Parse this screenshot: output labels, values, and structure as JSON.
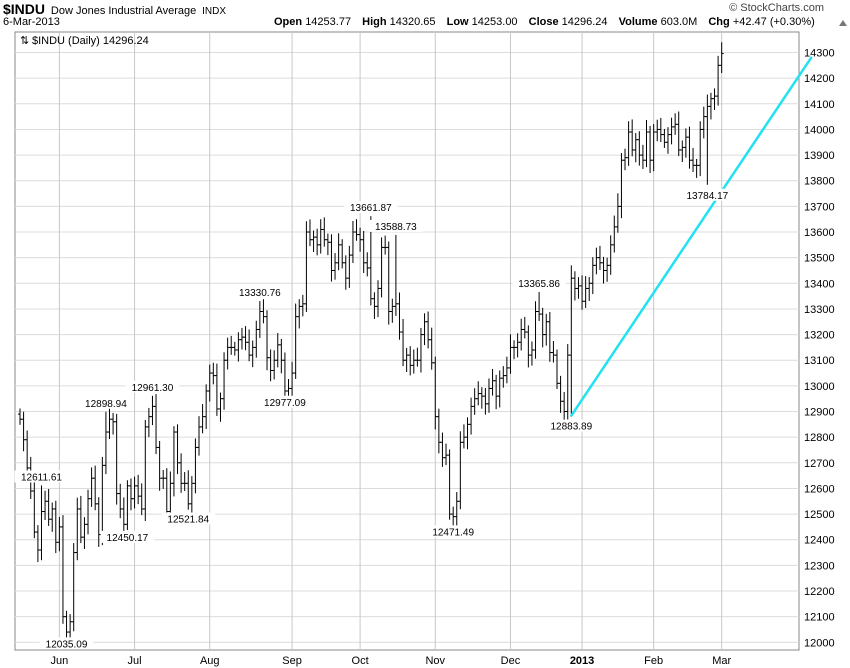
{
  "header": {
    "symbol": "$INDU",
    "name": "Dow Jones Industrial Average",
    "exchange": "INDX",
    "date": "6-Mar-2013",
    "credit": "© StockCharts.com",
    "open_label": "Open",
    "open": "14253.77",
    "high_label": "High",
    "high": "14320.65",
    "low_label": "Low",
    "low": "14253.00",
    "close_label": "Close",
    "close": "14296.24",
    "volume_label": "Volume",
    "volume": "603.0M",
    "chg_label": "Chg",
    "chg": "+42.47 (+0.30%)"
  },
  "colors": {
    "bar": "#000000",
    "trend": "#22e1f0",
    "grid": "#dcdcdc",
    "month_grid": "#c8c8c8"
  },
  "chart_data": {
    "type": "ohlc",
    "legend": "$INDU (Daily) 14296.24",
    "ylim": [
      11970,
      14380
    ],
    "y_ticks": [
      12000,
      12100,
      12200,
      12300,
      12400,
      12500,
      12600,
      12700,
      12800,
      12900,
      13000,
      13100,
      13200,
      13300,
      13400,
      13500,
      13600,
      13700,
      13800,
      13900,
      14000,
      14100,
      14200,
      14300
    ],
    "x_labels": [
      {
        "label": "Jun",
        "index": 11,
        "bold": false
      },
      {
        "label": "Jul",
        "index": 32,
        "bold": false
      },
      {
        "label": "Aug",
        "index": 53,
        "bold": false
      },
      {
        "label": "Sep",
        "index": 76,
        "bold": false
      },
      {
        "label": "Oct",
        "index": 95,
        "bold": false
      },
      {
        "label": "Nov",
        "index": 116,
        "bold": false
      },
      {
        "label": "Dec",
        "index": 137,
        "bold": false
      },
      {
        "label": "2013",
        "index": 157,
        "bold": true
      },
      {
        "label": "Feb",
        "index": 177,
        "bold": false
      },
      {
        "label": "Mar",
        "index": 196,
        "bold": false
      }
    ],
    "closes": [
      12870,
      12790,
      12680,
      12590,
      12430,
      12360,
      12510,
      12550,
      12480,
      12520,
      12390,
      12450,
      12100,
      12040,
      12080,
      12350,
      12520,
      12410,
      12460,
      12560,
      12640,
      12540,
      12420,
      12690,
      12820,
      12870,
      12860,
      12580,
      12520,
      12460,
      12610,
      12560,
      12610,
      12570,
      12520,
      12840,
      12880,
      12920,
      12760,
      12640,
      12640,
      12510,
      12620,
      12820,
      12700,
      12620,
      12620,
      12540,
      12620,
      12760,
      12840,
      12880,
      12980,
      13050,
      13040,
      12910,
      12950,
      13100,
      13150,
      13150,
      13140,
      13180,
      13190,
      13170,
      13120,
      13150,
      13220,
      13290,
      13270,
      13110,
      13060,
      13100,
      13160,
      13100,
      12980,
      12990,
      13050,
      13270,
      13310,
      13320,
      13600,
      13570,
      13580,
      13550,
      13610,
      13570,
      13560,
      13450,
      13480,
      13550,
      13480,
      13420,
      13510,
      13600,
      13590,
      13570,
      13480,
      13460,
      13340,
      13310,
      13380,
      13540,
      13540,
      13290,
      13310,
      13320,
      13210,
      13100,
      13120,
      13080,
      13100,
      13100,
      13200,
      13250,
      13180,
      13090,
      12880,
      12780,
      12720,
      12730,
      12500,
      12490,
      12550,
      12780,
      12800,
      12850,
      12920,
      12950,
      12970,
      12960,
      12930,
      12990,
      13020,
      12960,
      13030,
      13040,
      13070,
      13150,
      13150,
      13170,
      13220,
      13210,
      13120,
      13140,
      13290,
      13280,
      13200,
      13250,
      13130,
      13120,
      13010,
      12940,
      12900,
      13120,
      13420,
      13380,
      13390,
      13330,
      13380,
      13400,
      13470,
      13500,
      13480,
      13450,
      13470,
      13550,
      13620,
      13700,
      13880,
      13890,
      13990,
      13920,
      13960,
      13900,
      13880,
      13990,
      13880,
      13990,
      14000,
      13980,
      13950,
      13980,
      14010,
      14020,
      13920,
      13930,
      13970,
      13880,
      13860,
      13860,
      14000,
      14050,
      14090,
      14120,
      14130,
      14250,
      14296
    ],
    "annotations": [
      {
        "label": "12611.61",
        "index": 6,
        "value": 12611.61,
        "pos": "above"
      },
      {
        "label": "12035.09",
        "index": 13,
        "value": 12035.09,
        "pos": "below"
      },
      {
        "label": "12898.94",
        "index": 24,
        "value": 12898.94,
        "pos": "above"
      },
      {
        "label": "12450.17",
        "index": 30,
        "value": 12450.17,
        "pos": "below"
      },
      {
        "label": "12961.30",
        "index": 37,
        "value": 12961.3,
        "pos": "above"
      },
      {
        "label": "12521.84",
        "index": 47,
        "value": 12521.84,
        "pos": "below"
      },
      {
        "label": "13330.76",
        "index": 67,
        "value": 13330.76,
        "pos": "above"
      },
      {
        "label": "12977.09",
        "index": 74,
        "value": 12977.09,
        "pos": "below"
      },
      {
        "label": "13661.87",
        "index": 98,
        "value": 13661.87,
        "pos": "above"
      },
      {
        "label": "13588.73",
        "index": 105,
        "value": 13588.73,
        "pos": "above"
      },
      {
        "label": "12471.49",
        "index": 121,
        "value": 12471.49,
        "pos": "below"
      },
      {
        "label": "13365.86",
        "index": 145,
        "value": 13365.86,
        "pos": "above"
      },
      {
        "label": "12883.89",
        "index": 154,
        "value": 12883.89,
        "pos": "below"
      },
      {
        "label": "13784.17",
        "index": 192,
        "value": 13784.17,
        "pos": "below"
      }
    ],
    "trendline": {
      "start": {
        "index": 154,
        "value": 12883.89
      },
      "end": {
        "index": 221,
        "value": 14280
      }
    },
    "grid": true
  }
}
